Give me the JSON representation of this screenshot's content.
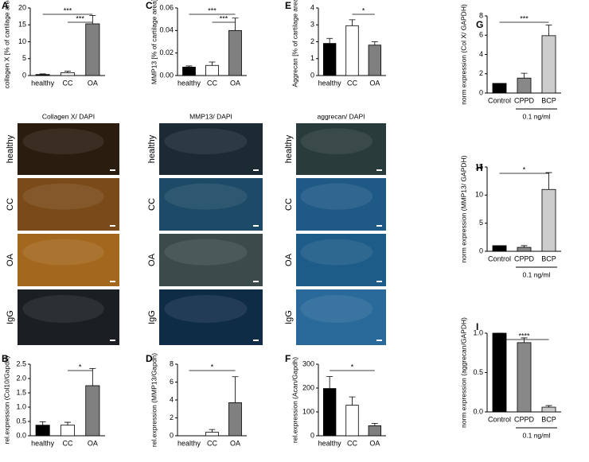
{
  "chart_data": [
    {
      "type": "bar",
      "panel": "A",
      "ylabel": "collagen X [% of cartilage area]",
      "categories": [
        "healthy",
        "CC",
        "OA"
      ],
      "values": [
        0.3,
        0.8,
        15.3
      ],
      "errors": [
        0.2,
        0.5,
        2.5
      ],
      "colors": [
        "#000000",
        "#ffffff",
        "#808080"
      ],
      "ylim": [
        0,
        20
      ],
      "yticks": [
        0,
        5,
        10,
        15,
        20
      ],
      "annotations": [
        {
          "text": "***",
          "between": [
            "healthy",
            "OA"
          ]
        },
        {
          "text": "***",
          "between": [
            "CC",
            "OA"
          ]
        }
      ]
    },
    {
      "type": "bar",
      "panel": "B",
      "ylabel": "rel.expression (Col10/Gapdh)",
      "categories": [
        "healthy",
        "CC",
        "OA"
      ],
      "values": [
        0.37,
        0.37,
        1.75
      ],
      "errors": [
        0.12,
        0.1,
        0.6
      ],
      "colors": [
        "#000000",
        "#ffffff",
        "#808080"
      ],
      "ylim": [
        0,
        2.5
      ],
      "yticks": [
        {
          "value": 0,
          "label": "0.0"
        },
        {
          "value": 0.5,
          "label": "0.5"
        },
        {
          "value": 1,
          "label": "1.0"
        },
        {
          "value": 1.5,
          "label": "1.5"
        },
        {
          "value": 2,
          "label": "2.0"
        },
        {
          "value": 2.5,
          "label": "2.5"
        }
      ],
      "annotations": [
        {
          "text": "*",
          "between": [
            "CC",
            "OA"
          ]
        }
      ]
    },
    {
      "type": "bar",
      "panel": "C",
      "ylabel": "MMP13 [% of cartilage area]",
      "categories": [
        "healthy",
        "CC",
        "OA"
      ],
      "values": [
        0.0075,
        0.009,
        0.04
      ],
      "errors": [
        0.001,
        0.003,
        0.011
      ],
      "colors": [
        "#000000",
        "#ffffff",
        "#808080"
      ],
      "ylim": [
        0,
        0.06
      ],
      "yticks": [
        {
          "value": 0,
          "label": "0.00"
        },
        {
          "value": 0.02,
          "label": "0.02"
        },
        {
          "value": 0.04,
          "label": "0.04"
        },
        {
          "value": 0.06,
          "label": "0.06"
        }
      ],
      "annotations": [
        {
          "text": "***",
          "between": [
            "healthy",
            "OA"
          ]
        },
        {
          "text": "***",
          "between": [
            "CC",
            "OA"
          ]
        }
      ]
    },
    {
      "type": "bar",
      "panel": "D",
      "ylabel": "rel.expression (MMP13/Gapdh)",
      "categories": [
        "healthy",
        "CC",
        "OA"
      ],
      "values": [
        0,
        0.4,
        3.7
      ],
      "errors": [
        0,
        0.3,
        2.9
      ],
      "colors": [
        "#000000",
        "#ffffff",
        "#808080"
      ],
      "ylim": [
        0,
        8
      ],
      "yticks": [
        0,
        2,
        4,
        6,
        8
      ],
      "annotations": [
        {
          "text": "*",
          "between": [
            "healthy",
            "OA"
          ]
        }
      ]
    },
    {
      "type": "bar",
      "panel": "E",
      "ylabel": "Aggrecan [% of cartilage area]",
      "categories": [
        "healthy",
        "CC",
        "OA"
      ],
      "values": [
        1.9,
        2.95,
        1.8
      ],
      "errors": [
        0.3,
        0.35,
        0.2
      ],
      "colors": [
        "#000000",
        "#ffffff",
        "#808080"
      ],
      "ylim": [
        0,
        4
      ],
      "yticks": [
        0,
        1,
        2,
        3,
        4
      ],
      "annotations": [
        {
          "text": "*",
          "between": [
            "CC",
            "OA"
          ]
        }
      ]
    },
    {
      "type": "bar",
      "panel": "F",
      "ylabel": "rel.expression (Acan/Gapdh)",
      "categories": [
        "healthy",
        "CC",
        "OA"
      ],
      "values": [
        198,
        128,
        42
      ],
      "errors": [
        50,
        35,
        10
      ],
      "colors": [
        "#000000",
        "#ffffff",
        "#808080"
      ],
      "ylim": [
        0,
        300
      ],
      "yticks": [
        0,
        100,
        200,
        300
      ],
      "annotations": [
        {
          "text": "*",
          "between": [
            "healthy",
            "OA"
          ]
        }
      ]
    },
    {
      "type": "bar",
      "panel": "G",
      "ylabel": "norm expression  (Col X/ GAPDH)",
      "categories": [
        "Control",
        "CPPD",
        "BCP"
      ],
      "values": [
        1.0,
        1.55,
        5.95
      ],
      "errors": [
        0,
        0.5,
        1.1
      ],
      "colors": [
        "#000000",
        "#888888",
        "#cccccc"
      ],
      "ylim": [
        0,
        8
      ],
      "yticks": [
        0,
        2,
        4,
        6,
        8
      ],
      "group_label": "0.1 ng/ml",
      "annotations": [
        {
          "text": "***",
          "between": [
            "Control",
            "BCP"
          ]
        }
      ]
    },
    {
      "type": "bar",
      "panel": "H",
      "ylabel": "norm expression  (MMP13/ GAPDH)",
      "categories": [
        "Control",
        "CPPD",
        "BCP"
      ],
      "values": [
        1.0,
        0.7,
        11.0
      ],
      "errors": [
        0,
        0.3,
        3.0
      ],
      "colors": [
        "#000000",
        "#888888",
        "#cccccc"
      ],
      "ylim": [
        0,
        15
      ],
      "yticks": [
        0,
        5,
        10,
        15
      ],
      "group_label": "0.1 ng/ml",
      "annotations": [
        {
          "text": "*",
          "between": [
            "Control",
            "BCP"
          ]
        }
      ]
    },
    {
      "type": "bar",
      "panel": "I",
      "ylabel": "norm expression  (aggrecan/GAPDH)",
      "categories": [
        "Control",
        "CPPD",
        "BCP"
      ],
      "values": [
        1.0,
        0.88,
        0.06
      ],
      "errors": [
        0,
        0.06,
        0.02
      ],
      "colors": [
        "#000000",
        "#888888",
        "#cccccc"
      ],
      "ylim": [
        0,
        1
      ],
      "yticks": [
        {
          "value": 0,
          "label": "0.0"
        },
        {
          "value": 0.5,
          "label": "0.5"
        },
        {
          "value": 1,
          "label": "1.0"
        }
      ],
      "group_label": "0.1 ng/ml",
      "annotations": [
        {
          "text": "****",
          "between": [
            "Control",
            "BCP"
          ]
        }
      ]
    }
  ],
  "images": [
    {
      "title": "Collagen X/ DAPI",
      "rows": [
        "healthy",
        "CC",
        "OA",
        "IgG"
      ]
    },
    {
      "title": "MMP13/ DAPI",
      "rows": [
        "healthy",
        "CC",
        "OA",
        "IgG"
      ]
    },
    {
      "title": "aggrecan/ DAPI",
      "rows": [
        "healthy",
        "CC",
        "OA",
        "IgG"
      ]
    }
  ]
}
